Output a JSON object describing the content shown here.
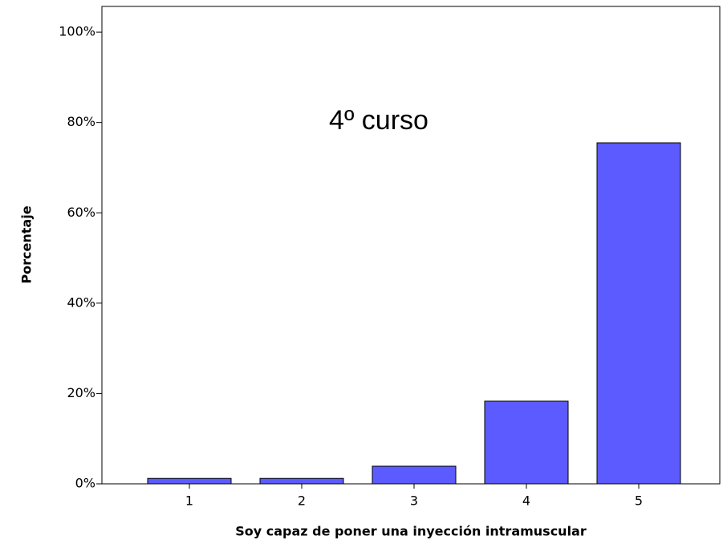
{
  "chart_data": {
    "type": "bar",
    "annotation": "4º curso",
    "x_label": "Soy capaz de poner una inyección intramuscular",
    "y_label": "Porcentaje",
    "categories": [
      "1",
      "2",
      "3",
      "4",
      "5"
    ],
    "values": [
      1.2,
      1.2,
      3.9,
      18.3,
      75.5
    ],
    "color": "#5b5bff",
    "ylim": [
      0,
      105.7
    ],
    "yticks": [
      {
        "value": 0,
        "label": "0%"
      },
      {
        "value": 20,
        "label": "20%"
      },
      {
        "value": 40,
        "label": "40%"
      },
      {
        "value": 60,
        "label": "60%"
      },
      {
        "value": 80,
        "label": "80%"
      },
      {
        "value": 100,
        "label": "100%"
      }
    ],
    "grid": false
  }
}
